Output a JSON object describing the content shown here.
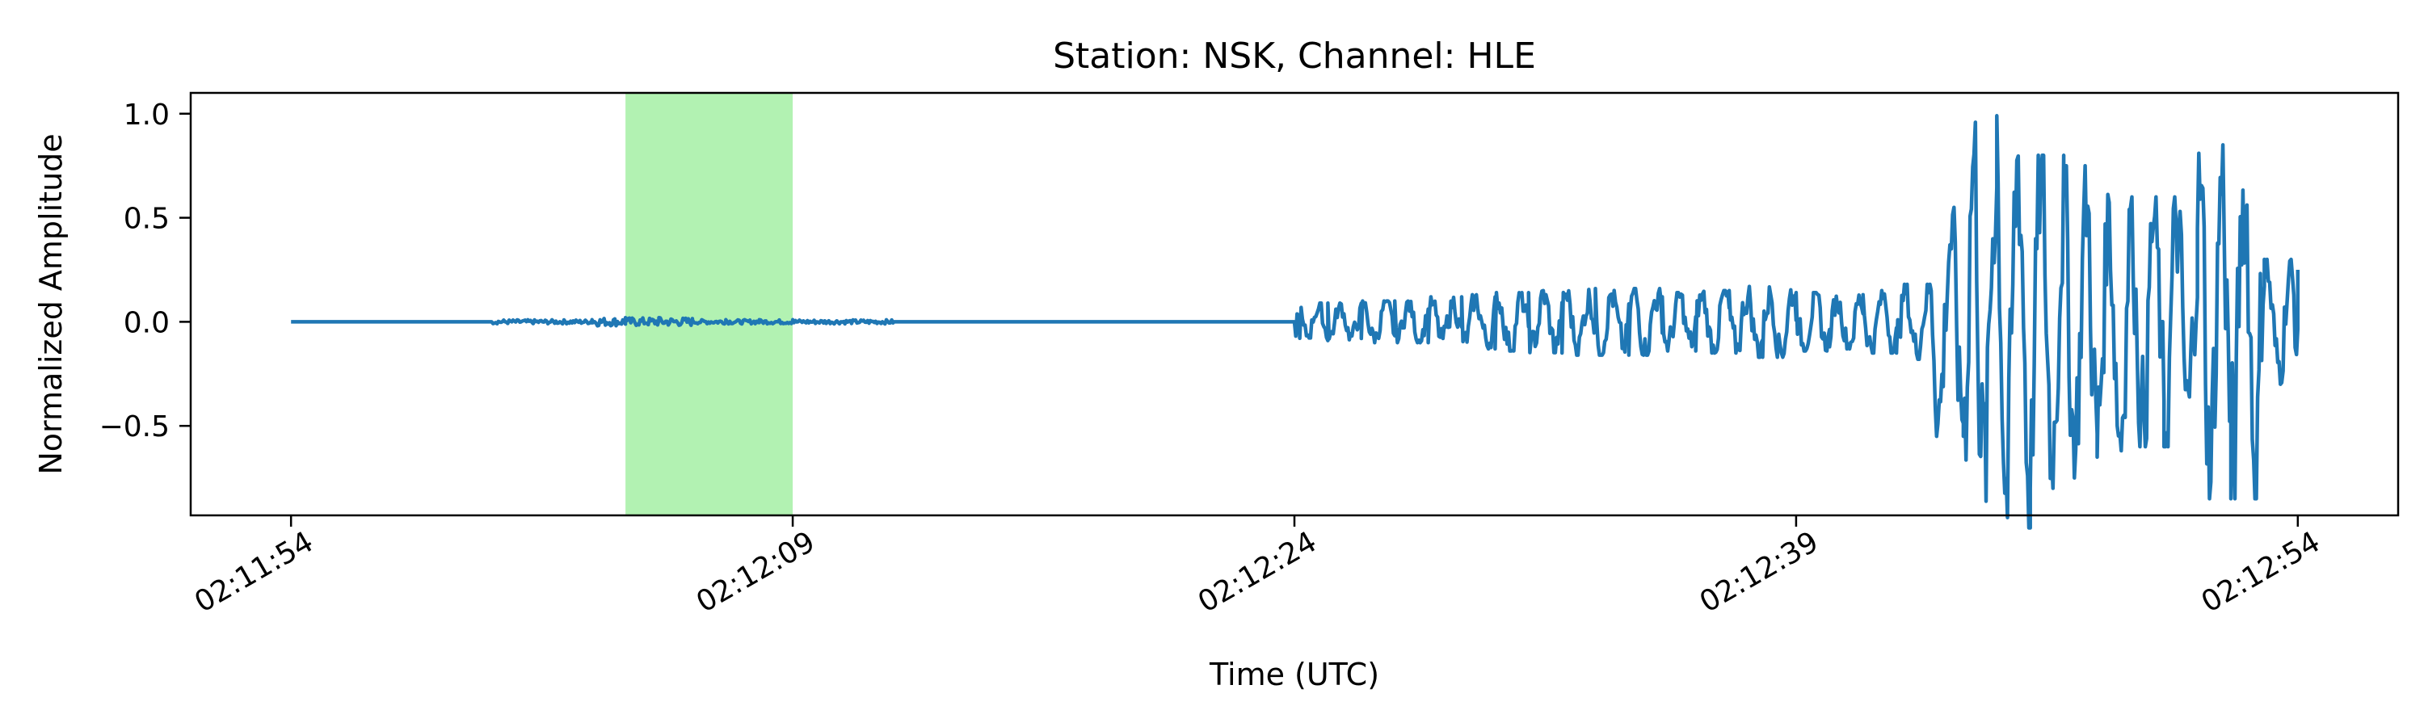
{
  "chart_data": {
    "type": "line",
    "title": "Station: NSK, Channel: HLE",
    "xlabel": "Time (UTC)",
    "ylabel": "Normalized Amplitude",
    "xlim": [
      "02:11:51",
      "02:12:57"
    ],
    "ylim": [
      -0.93,
      1.1
    ],
    "x_ticks": [
      "02:11:54",
      "02:12:09",
      "02:12:24",
      "02:12:39",
      "02:12:54"
    ],
    "y_ticks": [
      {
        "value": 1.0,
        "label": "1.0"
      },
      {
        "value": 0.5,
        "label": "0.5"
      },
      {
        "value": 0.0,
        "label": "0.0"
      },
      {
        "value": -0.5,
        "label": "−0.5"
      }
    ],
    "highlight_span": {
      "start": "02:12:04",
      "end": "02:12:09",
      "color": "#b2f2b2"
    },
    "grid": false,
    "line_color": "#1f77b4",
    "series": [
      {
        "x": [
          "02:11:54",
          "02:11:57",
          "02:12:00",
          "02:12:03",
          "02:12:04",
          "02:12:05",
          "02:12:06",
          "02:12:07",
          "02:12:08",
          "02:12:09",
          "02:12:12",
          "02:12:15",
          "02:12:18",
          "02:12:21",
          "02:12:24",
          "02:12:25",
          "02:12:26",
          "02:12:27",
          "02:12:28",
          "02:12:29",
          "02:12:30",
          "02:12:31",
          "02:12:32",
          "02:12:33",
          "02:12:34",
          "02:12:35",
          "02:12:36",
          "02:12:37",
          "02:12:38",
          "02:12:39",
          "02:12:40",
          "02:12:41",
          "02:12:42",
          "02:12:43",
          "02:12:44",
          "02:12:45",
          "02:12:46",
          "02:12:47",
          "02:12:48",
          "02:12:49",
          "02:12:50",
          "02:12:51",
          "02:12:52",
          "02:12:53",
          "02:12:54"
        ],
        "values": [
          0.0,
          0.0,
          0.0,
          0.01,
          0.02,
          0.02,
          0.01,
          0.01,
          0.01,
          0.01,
          0.0,
          0.0,
          0.0,
          0.0,
          0.0,
          0.09,
          -0.08,
          0.1,
          -0.1,
          0.12,
          -0.13,
          0.14,
          -0.15,
          0.16,
          -0.16,
          0.12,
          -0.14,
          0.15,
          -0.17,
          0.14,
          -0.12,
          0.13,
          -0.15,
          0.18,
          -0.55,
          0.99,
          -0.8,
          0.75,
          -0.65,
          0.55,
          -0.6,
          0.45,
          -0.85,
          0.3,
          0.25
        ]
      }
    ]
  }
}
